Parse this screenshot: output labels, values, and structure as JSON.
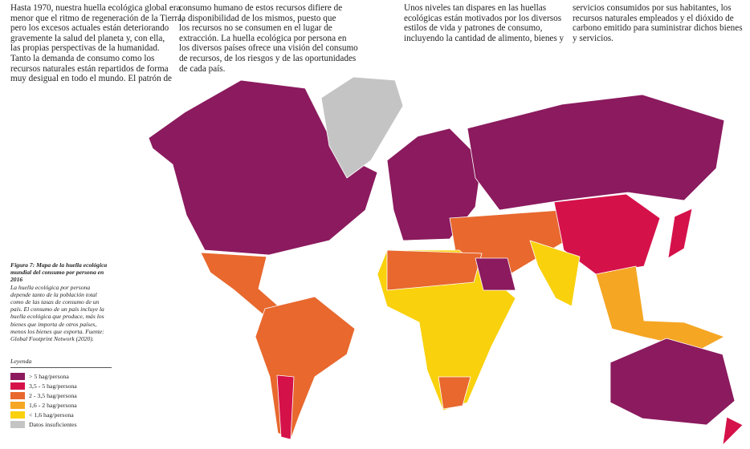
{
  "columns": [
    [
      "Hasta 1970, nuestra huella ecológica global era",
      "menor que el ritmo de regeneración de la Tierra,",
      "pero los excesos actuales están deteriorando",
      "gravemente la salud del planeta y, con ella,",
      "las propias perspectivas de la humanidad.",
      "Tanto la demanda de consumo como los",
      "recursos naturales están repartidos de forma",
      "muy desigual en todo el mundo. El patrón de"
    ],
    [
      "consumo humano de estos recursos difiere de",
      "la disponibilidad de los mismos, puesto que",
      "los recursos no se consumen en el lugar de",
      "extracción. La huella ecológica por persona en",
      "los diversos países ofrece una visión del consumo",
      "de recursos, de los riesgos y de las oportunidades",
      "de cada país."
    ],
    [
      "Unos niveles tan dispares en las huellas",
      "ecológicas están motivados por los diversos",
      "estilos de vida y patrones de consumo,",
      "incluyendo la cantidad de alimento, bienes y"
    ],
    [
      "servicios consumidos por sus habitantes, los",
      "recursos naturales empleados y el dióxido de",
      "carbono emitido para suministrar dichos bienes",
      "y servicios."
    ]
  ],
  "caption": {
    "title": "Figura 7: Mapa de la huella ecológica mundial del consumo por persona en 2016",
    "body": "La huella ecológica por persona depende tanto de la población total como de las tasas de consumo de un país. El consumo de un país incluye la huella ecológica que produce, más los bienes que importa de otros países, menos los bienes que exporta. Fuente: Global Footprint Network (2020)."
  },
  "legend": {
    "title": "Leyenda",
    "items": [
      {
        "label": "> 5 hag/persona",
        "color": "#8b1a5e"
      },
      {
        "label": "3,5 - 5 hag/persona",
        "color": "#d5114a"
      },
      {
        "label": "2 - 3,5 hag/persona",
        "color": "#e8682e"
      },
      {
        "label": "1,6 - 2 hag/persona",
        "color": "#f5a623"
      },
      {
        "label": "< 1,6 hag/persona",
        "color": "#f9d10c"
      },
      {
        "label": "Datos insuficientes",
        "color": "#c4c4c4"
      }
    ]
  }
}
